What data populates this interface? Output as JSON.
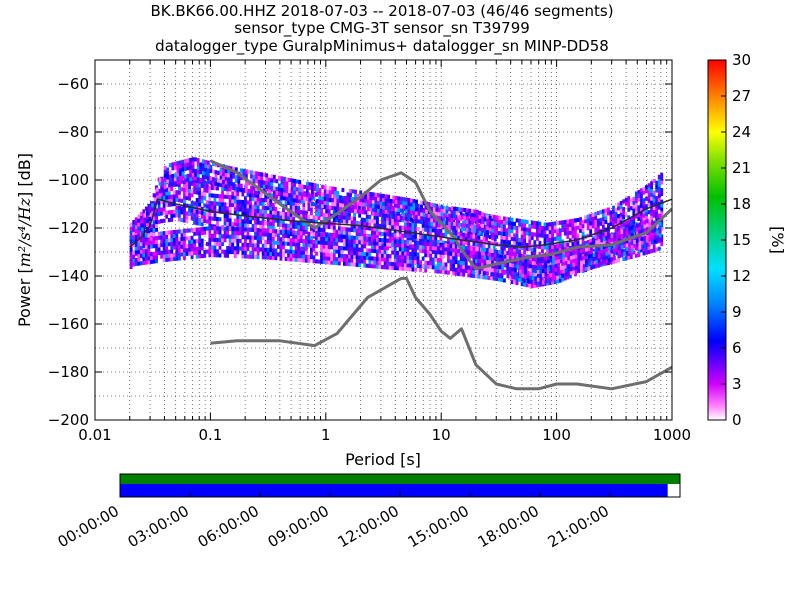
{
  "chart_data": [
    {
      "type": "heatmap",
      "title_lines": [
        "BK.BK66.00.HHZ   2018-07-03 -- 2018-07-03  (46/46 segments)",
        "sensor_type CMG-3T sensor_sn T39799",
        "datalogger_type GuralpMinimus+ datalogger_sn MINP-DD58"
      ],
      "xlabel": "Period [s]",
      "ylabel_prefix": "Power [",
      "ylabel_unit": "m²/s⁴/Hz",
      "ylabel_suffix": "] [dB]",
      "x_scale": "log",
      "xlim": [
        0.01,
        1000
      ],
      "ylim": [
        -200,
        -50
      ],
      "x_ticks": [
        0.01,
        0.1,
        1,
        10,
        100,
        1000
      ],
      "x_tick_labels": [
        "0.01",
        "0.1",
        "1",
        "10",
        "100",
        "1000"
      ],
      "y_ticks": [
        -200,
        -180,
        -160,
        -140,
        -120,
        -100,
        -80,
        -60
      ],
      "y_tick_labels": [
        "−200",
        "−180",
        "−160",
        "−140",
        "−120",
        "−100",
        "−80",
        "−60"
      ],
      "grid": true,
      "colorbar": {
        "label": "[%]",
        "range": [
          0,
          30
        ],
        "ticks": [
          0,
          3,
          6,
          9,
          12,
          15,
          18,
          21,
          24,
          27,
          30
        ],
        "tick_labels": [
          "0",
          "3",
          "6",
          "9",
          "12",
          "15",
          "18",
          "21",
          "24",
          "27",
          "30"
        ]
      },
      "noise_models": [
        {
          "name": "high-noise",
          "points": [
            [
              0.1,
              -92
            ],
            [
              0.17,
              -97
            ],
            [
              0.4,
              -110
            ],
            [
              0.8,
              -120
            ],
            [
              1.25,
              -114
            ],
            [
              2,
              -107
            ],
            [
              3,
              -100
            ],
            [
              4.5,
              -97
            ],
            [
              6,
              -101
            ],
            [
              8,
              -113
            ],
            [
              10,
              -118
            ],
            [
              13,
              -124
            ],
            [
              15,
              -129
            ],
            [
              20,
              -137
            ],
            [
              30,
              -135
            ],
            [
              60,
              -132
            ],
            [
              90,
              -131
            ],
            [
              150,
              -128
            ],
            [
              300,
              -127
            ],
            [
              450,
              -124
            ],
            [
              600,
              -122
            ],
            [
              1000,
              -112
            ]
          ]
        },
        {
          "name": "low-noise",
          "points": [
            [
              0.1,
              -168
            ],
            [
              0.17,
              -167
            ],
            [
              0.4,
              -167
            ],
            [
              0.8,
              -169
            ],
            [
              1.25,
              -164
            ],
            [
              2.3,
              -149
            ],
            [
              3.5,
              -144
            ],
            [
              4.5,
              -141
            ],
            [
              5,
              -141
            ],
            [
              6,
              -149
            ],
            [
              8,
              -156
            ],
            [
              10,
              -163
            ],
            [
              12,
              -166
            ],
            [
              15,
              -162
            ],
            [
              20,
              -177
            ],
            [
              30,
              -185
            ],
            [
              45,
              -187
            ],
            [
              70,
              -187
            ],
            [
              100,
              -185
            ],
            [
              150,
              -185
            ],
            [
              300,
              -187
            ],
            [
              600,
              -184
            ],
            [
              1000,
              -178
            ]
          ]
        }
      ],
      "median_curve": [
        [
          0.02,
          -128
        ],
        [
          0.025,
          -124
        ],
        [
          0.03,
          -119
        ],
        [
          0.035,
          -108
        ],
        [
          0.05,
          -110
        ],
        [
          0.1,
          -113
        ],
        [
          0.2,
          -115
        ],
        [
          0.5,
          -117
        ],
        [
          1,
          -118
        ],
        [
          2,
          -119
        ],
        [
          4,
          -121
        ],
        [
          8,
          -123
        ],
        [
          15,
          -125
        ],
        [
          30,
          -127
        ],
        [
          50,
          -128
        ],
        [
          80,
          -127
        ],
        [
          150,
          -125
        ],
        [
          300,
          -120
        ],
        [
          600,
          -112
        ],
        [
          1000,
          -108
        ]
      ],
      "psd_bands": [
        {
          "center": [
            [
              0.02,
              -128
            ],
            [
              0.03,
              -119
            ],
            [
              0.035,
              -109
            ],
            [
              0.05,
              -108
            ],
            [
              0.1,
              -111
            ],
            [
              0.3,
              -113
            ],
            [
              1,
              -116
            ],
            [
              3,
              -119
            ],
            [
              10,
              -121
            ],
            [
              30,
              -125
            ],
            [
              80,
              -128
            ],
            [
              150,
              -126
            ],
            [
              300,
              -121
            ],
            [
              600,
              -112
            ],
            [
              800,
              -107
            ]
          ],
          "half_width": 9
        },
        {
          "center": [
            [
              0.025,
              -122
            ],
            [
              0.04,
              -99
            ],
            [
              0.07,
              -96
            ],
            [
              0.15,
              -100
            ],
            [
              0.4,
              -104
            ],
            [
              1,
              -108
            ],
            [
              2,
              -110
            ],
            [
              5,
              -113
            ],
            [
              10,
              -116
            ],
            [
              20,
              -118
            ],
            [
              30,
              -122
            ]
          ],
          "half_width": 4
        },
        {
          "center": [
            [
              0.02,
              -130
            ],
            [
              0.04,
              -128
            ],
            [
              0.1,
              -126
            ],
            [
              0.3,
              -127
            ],
            [
              1,
              -129
            ],
            [
              3,
              -131
            ],
            [
              10,
              -133
            ],
            [
              30,
              -136
            ],
            [
              60,
              -139
            ],
            [
              100,
              -137
            ],
            [
              200,
              -131
            ],
            [
              500,
              -126
            ],
            [
              800,
              -123
            ]
          ],
          "half_width": 6
        },
        {
          "center": [
            [
              20,
              -134
            ],
            [
              40,
              -136
            ],
            [
              70,
              -139
            ],
            [
              100,
              -136
            ],
            [
              200,
              -132
            ],
            [
              400,
              -126
            ],
            [
              800,
              -120
            ]
          ],
          "half_width": 5
        }
      ],
      "timeline": {
        "tick_labels": [
          "00:00:00",
          "03:00:00",
          "06:00:00",
          "09:00:00",
          "12:00:00",
          "15:00:00",
          "18:00:00",
          "21:00:00"
        ],
        "coverage_fraction": 0.978,
        "colors": {
          "data_available": "#0000ff",
          "gap_free": "#008000"
        }
      }
    }
  ]
}
